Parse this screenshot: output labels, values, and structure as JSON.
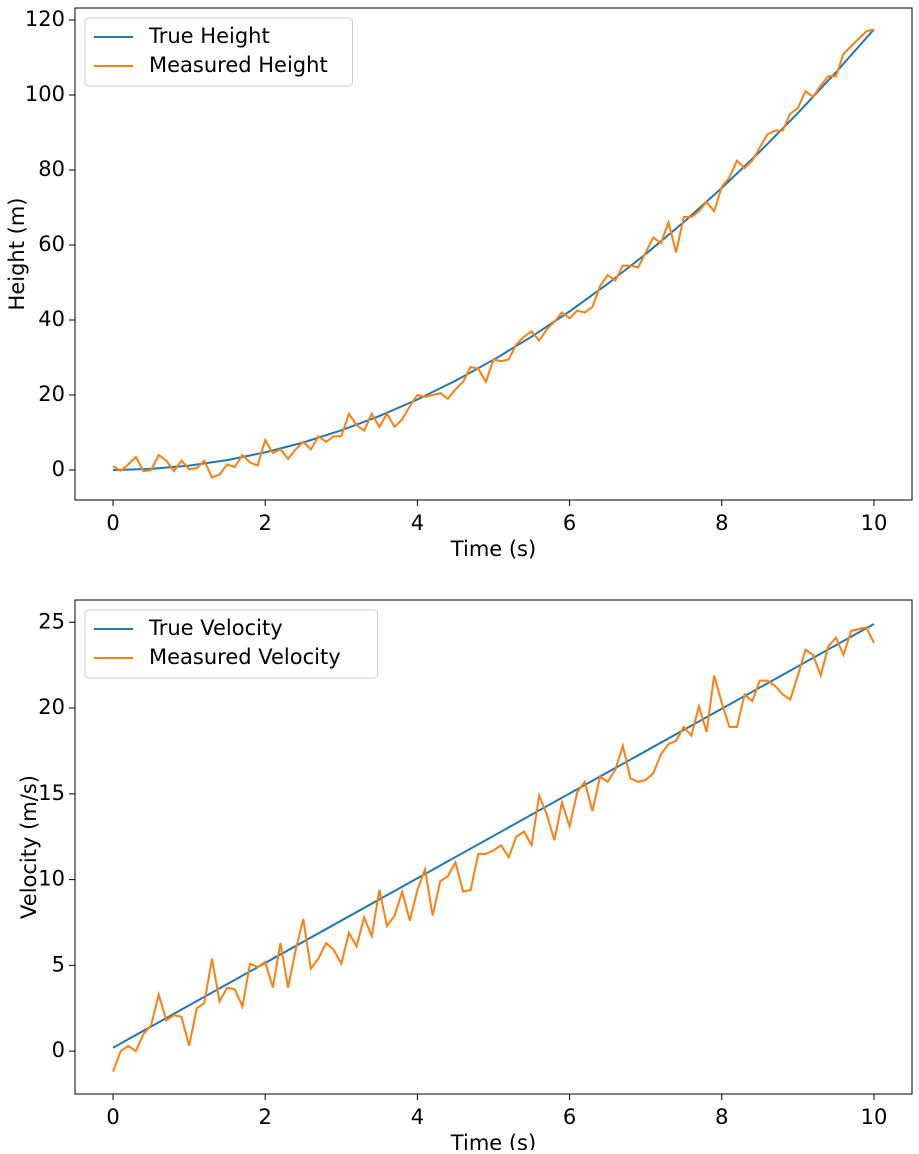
{
  "chart_data": [
    {
      "type": "line",
      "xlabel": "Time (s)",
      "ylabel": "Height (m)",
      "xlim": [
        -0.5,
        10.5
      ],
      "ylim": [
        -8,
        123.2
      ],
      "xticks": [
        0,
        2,
        4,
        6,
        8,
        10
      ],
      "yticks": [
        0,
        20,
        40,
        60,
        80,
        100,
        120
      ],
      "legend": "upper left",
      "series": [
        {
          "name": "True Height",
          "color": "#1f77b4",
          "x": [
            0,
            0.5,
            1,
            1.5,
            2,
            2.5,
            3,
            3.5,
            4,
            4.5,
            5,
            5.5,
            6,
            6.5,
            7,
            7.5,
            8,
            8.5,
            9,
            9.5,
            10
          ],
          "values": [
            0,
            0.29,
            1.18,
            2.64,
            4.7,
            7.34,
            10.58,
            14.39,
            18.8,
            23.79,
            29.38,
            35.55,
            42.3,
            49.64,
            57.58,
            66.09,
            75.2,
            84.89,
            95.18,
            106.04,
            117.5
          ]
        },
        {
          "name": "Measured Height",
          "color": "#ff7f0e",
          "x": [
            0,
            0.1,
            0.2,
            0.3,
            0.4,
            0.5,
            0.6,
            0.7,
            0.8,
            0.9,
            1,
            1.1,
            1.2,
            1.3,
            1.4,
            1.5,
            1.6,
            1.7,
            1.8,
            1.9,
            2,
            2.1,
            2.2,
            2.3,
            2.4,
            2.5,
            2.6,
            2.7,
            2.8,
            2.9,
            3,
            3.1,
            3.2,
            3.3,
            3.4,
            3.5,
            3.6,
            3.7,
            3.8,
            3.9,
            4,
            4.1,
            4.2,
            4.3,
            4.4,
            4.5,
            4.6,
            4.7,
            4.8,
            4.9,
            5,
            5.1,
            5.2,
            5.3,
            5.4,
            5.5,
            5.6,
            5.7,
            5.8,
            5.9,
            6,
            6.1,
            6.2,
            6.3,
            6.4,
            6.5,
            6.6,
            6.7,
            6.8,
            6.9,
            7,
            7.1,
            7.2,
            7.3,
            7.4,
            7.5,
            7.6,
            7.7,
            7.8,
            7.9,
            8,
            8.1,
            8.2,
            8.3,
            8.4,
            8.5,
            8.6,
            8.7,
            8.8,
            8.9,
            9,
            9.1,
            9.2,
            9.3,
            9.4,
            9.5,
            9.6,
            9.7,
            9.8,
            9.9,
            10
          ],
          "values": [
            1,
            -0.2,
            1.5,
            3.5,
            -0.3,
            0,
            4,
            2.5,
            -0.3,
            2.5,
            0.2,
            0.5,
            2.5,
            -2,
            -1.2,
            1.5,
            0.8,
            4,
            2,
            1.2,
            8,
            4.5,
            5.5,
            3,
            5.5,
            7.5,
            5.5,
            9,
            7.5,
            9,
            9,
            15,
            12,
            10.5,
            15,
            11.5,
            15,
            11.5,
            13.5,
            17,
            20,
            19.5,
            20,
            20.5,
            19,
            21.5,
            23.5,
            27.5,
            27,
            23.5,
            29.5,
            29,
            29.5,
            33.5,
            35.5,
            37,
            34.5,
            37.5,
            39.5,
            42,
            40.5,
            42.5,
            42,
            43.5,
            49,
            52,
            50.5,
            54.5,
            54.5,
            54,
            58,
            62,
            60.5,
            66,
            58,
            67.5,
            67.5,
            69,
            71.5,
            69,
            75.5,
            78,
            82.5,
            80.5,
            82.5,
            86,
            89.5,
            90.5,
            90.5,
            95,
            96.5,
            101,
            99.5,
            102.5,
            105,
            105,
            111,
            113,
            115,
            117,
            117.5
          ]
        }
      ]
    },
    {
      "type": "line",
      "xlabel": "Time (s)",
      "ylabel": "Velocity (m/s)",
      "xlim": [
        -0.5,
        10.5
      ],
      "ylim": [
        -2.5,
        26.3
      ],
      "xticks": [
        0,
        2,
        4,
        6,
        8,
        10
      ],
      "yticks": [
        0,
        5,
        10,
        15,
        20,
        25
      ],
      "legend": "upper left",
      "series": [
        {
          "name": "True Velocity",
          "color": "#1f77b4",
          "x": [
            0,
            10
          ],
          "values": [
            0.2,
            24.9
          ]
        },
        {
          "name": "Measured Velocity",
          "color": "#ff7f0e",
          "x": [
            0,
            0.1,
            0.2,
            0.3,
            0.4,
            0.5,
            0.6,
            0.7,
            0.8,
            0.9,
            1,
            1.1,
            1.2,
            1.3,
            1.4,
            1.5,
            1.6,
            1.7,
            1.8,
            1.9,
            2,
            2.1,
            2.2,
            2.3,
            2.4,
            2.5,
            2.6,
            2.7,
            2.8,
            2.9,
            3,
            3.1,
            3.2,
            3.3,
            3.4,
            3.5,
            3.6,
            3.7,
            3.8,
            3.9,
            4,
            4.1,
            4.2,
            4.3,
            4.4,
            4.5,
            4.6,
            4.7,
            4.8,
            4.9,
            5,
            5.1,
            5.2,
            5.3,
            5.4,
            5.5,
            5.6,
            5.7,
            5.8,
            5.9,
            6,
            6.1,
            6.2,
            6.3,
            6.4,
            6.5,
            6.6,
            6.7,
            6.8,
            6.9,
            7,
            7.1,
            7.2,
            7.3,
            7.4,
            7.5,
            7.6,
            7.7,
            7.8,
            7.9,
            8,
            8.1,
            8.2,
            8.3,
            8.4,
            8.5,
            8.6,
            8.7,
            8.8,
            8.9,
            9,
            9.1,
            9.2,
            9.3,
            9.4,
            9.5,
            9.6,
            9.7,
            9.8,
            9.9,
            10
          ],
          "values": [
            -1.2,
            0,
            0.3,
            0,
            1,
            1.5,
            3.3,
            1.8,
            2.1,
            2,
            0.3,
            2.5,
            2.8,
            5.4,
            2.9,
            3.7,
            3.6,
            2.6,
            5.1,
            4.9,
            5.2,
            3.7,
            6.3,
            3.7,
            5.9,
            7.7,
            4.8,
            5.4,
            6.3,
            5.9,
            5.1,
            6.9,
            6.1,
            7.8,
            6.7,
            9.4,
            7.3,
            7.9,
            9.3,
            7.6,
            9.4,
            10.6,
            7.9,
            9.9,
            10.2,
            11,
            9.3,
            9.4,
            11.5,
            11.5,
            11.7,
            12,
            11.3,
            12.5,
            12.8,
            12,
            14.9,
            13.8,
            12.3,
            14.5,
            13.1,
            15.1,
            15.7,
            14,
            16,
            15.7,
            16.4,
            17.8,
            15.9,
            15.7,
            15.8,
            16.2,
            17.3,
            17.9,
            18.1,
            18.9,
            18.4,
            20.1,
            18.6,
            21.9,
            20.3,
            18.9,
            18.9,
            20.8,
            20.4,
            21.6,
            21.6,
            21.3,
            20.8,
            20.5,
            21.9,
            23.4,
            23.1,
            21.9,
            23.6,
            24.1,
            23.1,
            24.5,
            24.6,
            24.7,
            23.8
          ]
        }
      ]
    }
  ]
}
